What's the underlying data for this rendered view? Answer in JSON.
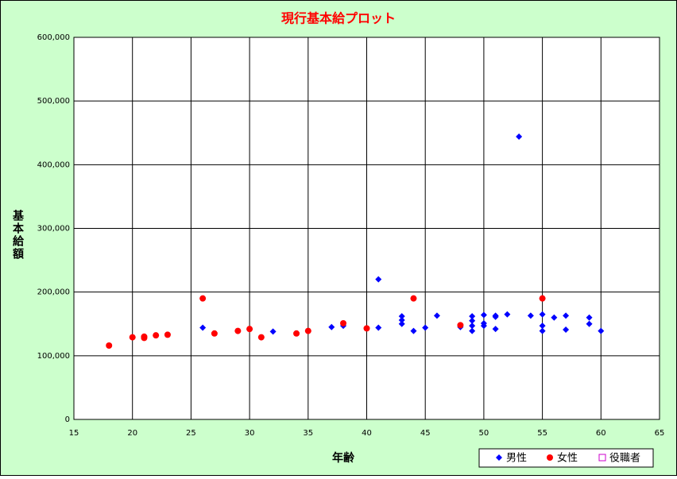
{
  "chart_data": {
    "type": "scatter",
    "title": "現行基本給プロット",
    "x_label": "年齢",
    "y_label": "基本給額",
    "xlim": [
      15,
      65
    ],
    "xticks": [
      15,
      20,
      25,
      30,
      35,
      40,
      45,
      50,
      55,
      60,
      65
    ],
    "ylim": [
      0,
      600000
    ],
    "yticks": [
      0,
      {
        "value": 100000,
        "label": "100,000"
      },
      {
        "value": 200000,
        "label": "200,000"
      },
      {
        "value": 300000,
        "label": "300,000"
      },
      {
        "value": 400000,
        "label": "400,000"
      },
      {
        "value": 500000,
        "label": "500,000"
      },
      {
        "value": 600000,
        "label": "600,000"
      }
    ],
    "grid": true,
    "legend": "bottom-right",
    "series": [
      {
        "name": "男性",
        "color": "#0000ff",
        "marker": "diamond",
        "x": [
          26,
          32,
          37,
          38,
          41,
          41,
          43,
          43,
          43,
          44,
          45,
          46,
          48,
          49,
          49,
          49,
          49,
          50,
          50,
          50,
          51,
          51,
          51,
          52,
          53,
          54,
          55,
          55,
          55,
          56,
          57,
          57,
          59,
          59,
          60
        ],
        "values": [
          144000,
          138000,
          145000,
          147000,
          220000,
          144000,
          162000,
          156000,
          150000,
          139000,
          144000,
          163000,
          145000,
          162000,
          155000,
          147000,
          139000,
          164000,
          151000,
          147000,
          163000,
          161000,
          142000,
          165000,
          444000,
          163000,
          165000,
          147000,
          139000,
          160000,
          163000,
          141000,
          160000,
          150000,
          139000
        ]
      },
      {
        "name": "女性",
        "color": "#ff0000",
        "marker": "circle",
        "x": [
          18,
          20,
          21,
          21,
          22,
          23,
          26,
          27,
          29,
          30,
          31,
          34,
          35,
          38,
          40,
          44,
          48,
          55
        ],
        "values": [
          116000,
          129000,
          130000,
          128000,
          132000,
          133000,
          190000,
          135000,
          139000,
          142000,
          129000,
          135000,
          139000,
          151000,
          143000,
          190000,
          148000,
          190000
        ]
      },
      {
        "name": "役職者",
        "color": "#cc00cc",
        "marker": "square",
        "x": [],
        "values": []
      }
    ]
  }
}
